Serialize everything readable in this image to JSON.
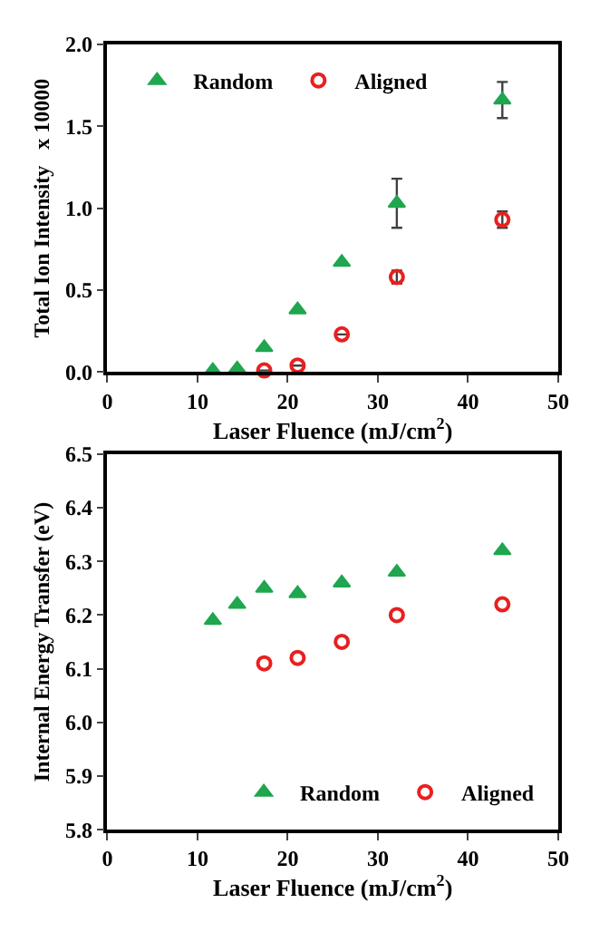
{
  "chart_data": [
    {
      "type": "scatter",
      "xlabel": "Laser Fluence (mJ/cm$^{2}$)",
      "ylabel": "Total Ion Intensity   x 10000",
      "xlim": [
        0,
        50
      ],
      "xticks": [
        0,
        10,
        20,
        30,
        40,
        50
      ],
      "ylim": [
        0,
        2
      ],
      "yticks": [
        {
          "value": 0,
          "label": "0.0"
        },
        0.5,
        {
          "value": 1,
          "label": "1.0"
        },
        1.5,
        {
          "value": 2,
          "label": "2.0"
        }
      ],
      "legend": "top left",
      "series": [
        {
          "name": "Random",
          "color": "#1fa64f",
          "marker": "triangle",
          "x": [
            11.7,
            14.4,
            17.4,
            21.1,
            26.0,
            32.1,
            43.8
          ],
          "values": [
            0.01,
            0.02,
            0.15,
            0.38,
            0.67,
            1.03,
            1.66
          ],
          "errors": [
            null,
            null,
            null,
            null,
            null,
            0.15,
            0.11
          ]
        },
        {
          "name": "Aligned",
          "color": "#e8201f",
          "marker": "circle",
          "x": [
            17.4,
            21.1,
            26.0,
            32.1,
            43.8
          ],
          "values": [
            0.01,
            0.04,
            0.23,
            0.58,
            0.93
          ],
          "errors": [
            null,
            null,
            null,
            0.04,
            0.05
          ]
        }
      ]
    },
    {
      "type": "scatter",
      "xlabel": "Laser Fluence (mJ/cm$^{2}$)",
      "ylabel": "Internal Energy Transfer (eV)",
      "xlim": [
        0,
        50
      ],
      "xticks": [
        0,
        10,
        20,
        30,
        40,
        50
      ],
      "ylim": [
        5.8,
        6.5
      ],
      "yticks": [
        5.8,
        5.9,
        {
          "value": 6,
          "label": "6.0"
        },
        6.1,
        6.2,
        6.3,
        6.4,
        6.5
      ],
      "legend": "bottom right",
      "series": [
        {
          "name": "Random",
          "color": "#1fa64f",
          "marker": "triangle",
          "x": [
            11.7,
            14.4,
            17.4,
            21.1,
            26.0,
            32.1,
            43.8
          ],
          "values": [
            6.19,
            6.22,
            6.25,
            6.24,
            6.26,
            6.28,
            6.32
          ]
        },
        {
          "name": "Aligned",
          "color": "#e8201f",
          "marker": "circle",
          "x": [
            17.4,
            21.1,
            26.0,
            32.1,
            43.8
          ],
          "values": [
            6.11,
            6.12,
            6.15,
            6.2,
            6.22
          ]
        }
      ]
    }
  ]
}
